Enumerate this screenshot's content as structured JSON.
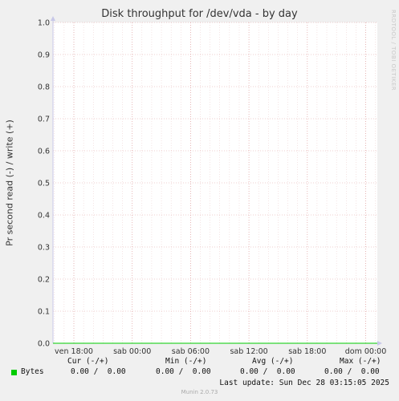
{
  "chart_data": {
    "type": "line",
    "title": "Disk throughput for /dev/vda - by day",
    "ylabel": "Pr second read (-) / write (+)",
    "xlabel": "",
    "ylim": [
      0,
      1.0
    ],
    "yticks": [
      "0.0",
      "0.1",
      "0.2",
      "0.3",
      "0.4",
      "0.5",
      "0.6",
      "0.7",
      "0.8",
      "0.9",
      "1.0"
    ],
    "xticks": [
      "ven 18:00",
      "sab 00:00",
      "sab 06:00",
      "sab 12:00",
      "sab 18:00",
      "dom 00:00"
    ],
    "grid": true,
    "series": [
      {
        "name": "Bytes",
        "values": [
          0,
          0,
          0,
          0,
          0,
          0
        ],
        "color": "#00cc00"
      }
    ]
  },
  "watermark": "RRDTOOL / TOBI OETIKER",
  "legend": {
    "headers": {
      "cur": "Cur (-/+)",
      "min": "Min (-/+)",
      "avg": "Avg (-/+)",
      "max": "Max (-/+)"
    },
    "rows": [
      {
        "name": "Bytes",
        "color": "#00cc00",
        "cur": "0.00 /  0.00",
        "min": "0.00 /  0.00",
        "avg": "0.00 /  0.00",
        "max": "0.00 /  0.00"
      }
    ]
  },
  "last_update": "Last update: Sun Dec 28 03:15:05 2025",
  "footer": "Munin 2.0.73",
  "colors": {
    "background": "#f0f0f0",
    "plot": "#ffffff",
    "grid_major": "#e0a0a0",
    "axis": "#c8c8e8",
    "series": "#00cc00"
  }
}
